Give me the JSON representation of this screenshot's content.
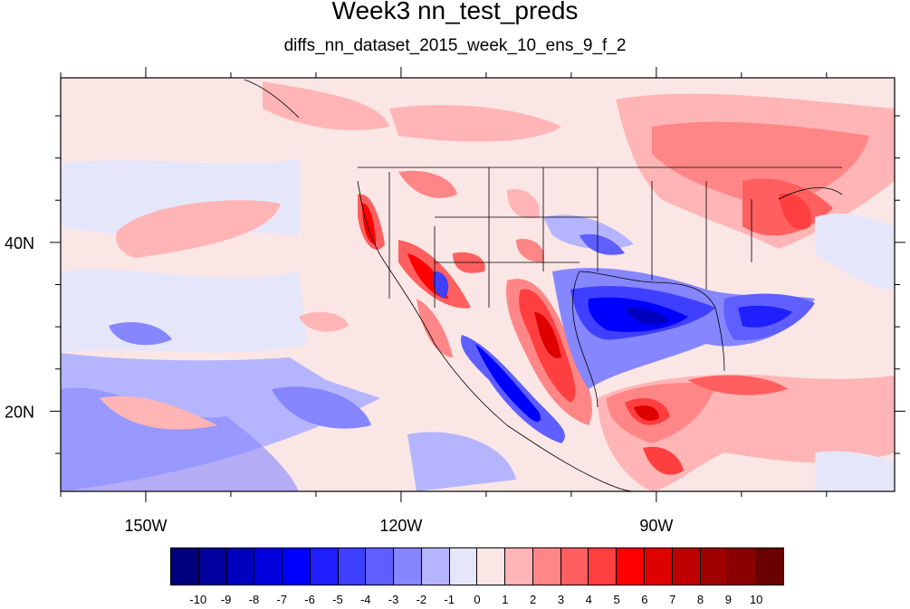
{
  "title": "Week3 nn_test_preds",
  "subtitle": "diffs_nn_dataset_2015_week_10_ens_9_f_2",
  "map": {
    "projection": "cylindrical-equidistant",
    "lon_range": [
      -160,
      -62
    ],
    "lat_range": [
      10.5,
      59.5
    ],
    "lon_ticks": [
      {
        "value": -150,
        "label": "150W"
      },
      {
        "value": -120,
        "label": "120W"
      },
      {
        "value": -90,
        "label": "90W"
      }
    ],
    "lat_ticks": [
      {
        "value": 40,
        "label": "40N"
      },
      {
        "value": 20,
        "label": "20N"
      }
    ],
    "features": [
      "coastlines",
      "us-state-borders",
      "country-borders"
    ],
    "field": "diffs"
  },
  "colorbar": {
    "colors": [
      "#00007f",
      "#00009f",
      "#0000bf",
      "#0000df",
      "#0000ff",
      "#1f1fff",
      "#3f3fff",
      "#5f5fff",
      "#8686ff",
      "#b5b5ff",
      "#e6e6fa",
      "#fbe6e6",
      "#ffb5b5",
      "#ff8686",
      "#ff5f5f",
      "#ff3f3f",
      "#ff0000",
      "#df0000",
      "#bf0000",
      "#9f0000",
      "#8a0000",
      "#6a0000"
    ],
    "labels": [
      "-10",
      "-9",
      "-8",
      "-7",
      "-6",
      "-5",
      "-4",
      "-3",
      "-2",
      "-1",
      "0",
      "1",
      "2",
      "3",
      "4",
      "5",
      "6",
      "7",
      "8",
      "9",
      "10"
    ]
  }
}
